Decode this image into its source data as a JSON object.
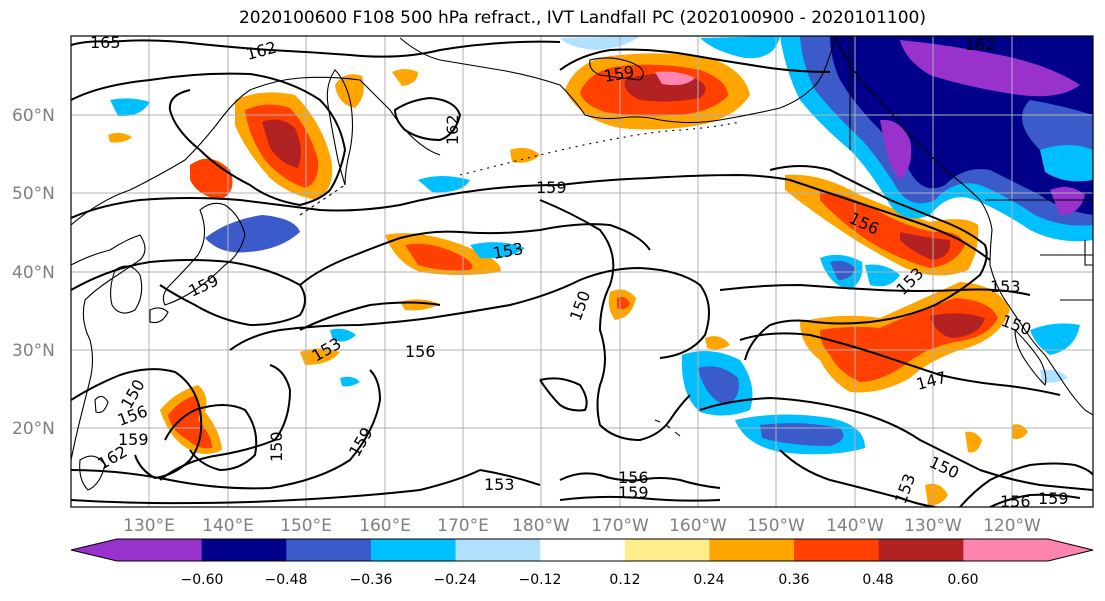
{
  "title": "2020100600 F108 500 hPa refract., IVT Landfall PC (2020100900 - 2020101100)",
  "lat_labels": [
    "60°N",
    "50°N",
    "40°N",
    "30°N",
    "20°N"
  ],
  "lon_labels": [
    "130°E",
    "140°E",
    "150°E",
    "160°E",
    "170°E",
    "180°W",
    "170°W",
    "160°W",
    "150°W",
    "140°W",
    "130°W",
    "120°W"
  ],
  "colorbar": {
    "ticks": [
      "−0.60",
      "−0.48",
      "−0.36",
      "−0.24",
      "−0.12",
      "0.12",
      "0.24",
      "0.36",
      "0.48",
      "0.60"
    ],
    "colors": [
      "#9932cc",
      "#00008b",
      "#3a5bc9",
      "#00bfff",
      "#b0e2ff",
      "#ffffff",
      "#ffec8b",
      "#ffa500",
      "#ff4000",
      "#b22222",
      "#ff85b0"
    ]
  },
  "contour_labels": [
    "165",
    "162",
    "162",
    "159",
    "159",
    "156",
    "153",
    "150",
    "153",
    "150",
    "162",
    "159",
    "153",
    "156",
    "150",
    "156",
    "159",
    "162",
    "150",
    "159",
    "153",
    "156",
    "159",
    "150",
    "147",
    "153",
    "156",
    "159",
    "150",
    "153"
  ]
}
